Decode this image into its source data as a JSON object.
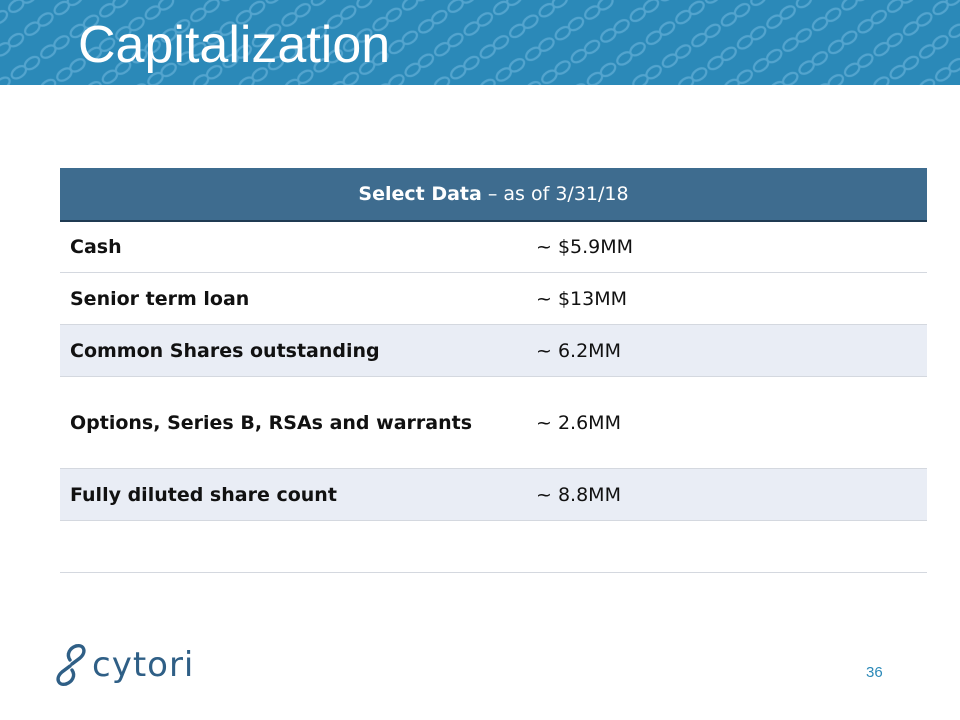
{
  "slide": {
    "title": "Capitalization",
    "page_number": "36"
  },
  "table": {
    "header_bold": "Select Data",
    "header_rest": " – as of 3/31/18",
    "rows": [
      {
        "label": "Cash",
        "value": "~ $5.9MM"
      },
      {
        "label": "Senior term loan",
        "value": "~ $13MM"
      },
      {
        "label": "Common Shares outstanding",
        "value": "~ 6.2MM"
      },
      {
        "label": "Options, Series B, RSAs and warrants",
        "value": "~ 2.6MM"
      },
      {
        "label": "Fully diluted share count",
        "value": "~ 8.8MM"
      },
      {
        "label": "",
        "value": ""
      }
    ]
  },
  "logo": {
    "text": "cytori"
  },
  "colors": {
    "banner": "#2b89b8",
    "table_header": "#3e6c8f",
    "row_shade": "#e9edf5",
    "logo": "#2f5f86"
  }
}
